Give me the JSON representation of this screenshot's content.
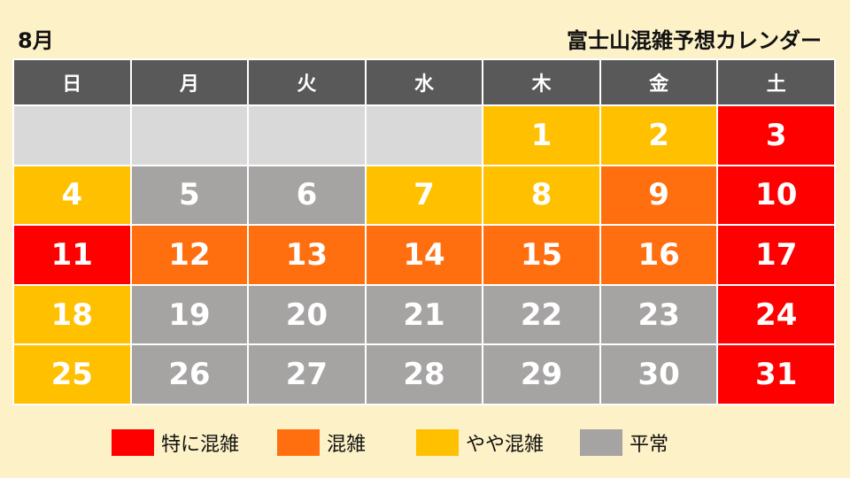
{
  "header": {
    "month": "8月",
    "title": "富士山混雑予想カレンダー"
  },
  "weekdays": [
    "日",
    "月",
    "火",
    "水",
    "木",
    "金",
    "土"
  ],
  "levels": {
    "very": {
      "label": "特に混雑",
      "color": "#ff0000"
    },
    "crowded": {
      "label": "混雑",
      "color": "#ff6f0f"
    },
    "slight": {
      "label": "やや混雑",
      "color": "#ffc000"
    },
    "normal": {
      "label": "平常",
      "color": "#a6a3a3"
    },
    "empty": {
      "label": "",
      "color": "#d9d9d9"
    }
  },
  "weeks": [
    [
      {
        "day": "",
        "level": "empty"
      },
      {
        "day": "",
        "level": "empty"
      },
      {
        "day": "",
        "level": "empty"
      },
      {
        "day": "",
        "level": "empty"
      },
      {
        "day": "1",
        "level": "slight"
      },
      {
        "day": "2",
        "level": "slight"
      },
      {
        "day": "3",
        "level": "very"
      }
    ],
    [
      {
        "day": "4",
        "level": "slight"
      },
      {
        "day": "5",
        "level": "normal"
      },
      {
        "day": "6",
        "level": "normal"
      },
      {
        "day": "7",
        "level": "slight"
      },
      {
        "day": "8",
        "level": "slight"
      },
      {
        "day": "9",
        "level": "crowded"
      },
      {
        "day": "10",
        "level": "very"
      }
    ],
    [
      {
        "day": "11",
        "level": "very"
      },
      {
        "day": "12",
        "level": "crowded"
      },
      {
        "day": "13",
        "level": "crowded"
      },
      {
        "day": "14",
        "level": "crowded"
      },
      {
        "day": "15",
        "level": "crowded"
      },
      {
        "day": "16",
        "level": "crowded"
      },
      {
        "day": "17",
        "level": "very"
      }
    ],
    [
      {
        "day": "18",
        "level": "slight"
      },
      {
        "day": "19",
        "level": "normal"
      },
      {
        "day": "20",
        "level": "normal"
      },
      {
        "day": "21",
        "level": "normal"
      },
      {
        "day": "22",
        "level": "normal"
      },
      {
        "day": "23",
        "level": "normal"
      },
      {
        "day": "24",
        "level": "very"
      }
    ],
    [
      {
        "day": "25",
        "level": "slight"
      },
      {
        "day": "26",
        "level": "normal"
      },
      {
        "day": "27",
        "level": "normal"
      },
      {
        "day": "28",
        "level": "normal"
      },
      {
        "day": "29",
        "level": "normal"
      },
      {
        "day": "30",
        "level": "normal"
      },
      {
        "day": "31",
        "level": "very"
      }
    ]
  ],
  "legend": [
    "very",
    "crowded",
    "slight",
    "normal"
  ]
}
